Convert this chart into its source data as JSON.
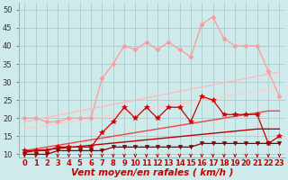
{
  "x": [
    0,
    1,
    2,
    3,
    4,
    5,
    6,
    7,
    8,
    9,
    10,
    11,
    12,
    13,
    14,
    15,
    16,
    17,
    18,
    19,
    20,
    21,
    22,
    23
  ],
  "series": [
    {
      "name": "rafales_jagged",
      "color": "#ff9999",
      "linewidth": 0.9,
      "marker": "D",
      "markersize": 2.5,
      "zorder": 4,
      "y": [
        20,
        20,
        19,
        19,
        20,
        20,
        20,
        31,
        35,
        40,
        39,
        41,
        39,
        41,
        39,
        37,
        46,
        48,
        42,
        40,
        40,
        40,
        33,
        26
      ]
    },
    {
      "name": "rafales_trend_upper",
      "color": "#ffbbbb",
      "linewidth": 1.0,
      "marker": null,
      "markersize": 0,
      "zorder": 3,
      "y": [
        19.0,
        19.6,
        20.2,
        20.8,
        21.4,
        22.0,
        22.6,
        23.2,
        23.8,
        24.4,
        25.0,
        25.6,
        26.2,
        26.8,
        27.4,
        28.0,
        28.6,
        29.2,
        29.8,
        30.4,
        31.0,
        31.6,
        32.2,
        32.8
      ]
    },
    {
      "name": "rafales_trend_lower",
      "color": "#ffcccc",
      "linewidth": 1.0,
      "marker": null,
      "markersize": 0,
      "zorder": 3,
      "y": [
        17.0,
        17.5,
        18.0,
        18.5,
        19.0,
        19.5,
        20.0,
        20.5,
        21.0,
        21.5,
        22.0,
        22.5,
        23.0,
        23.5,
        24.0,
        24.5,
        25.0,
        25.5,
        26.0,
        26.5,
        27.0,
        27.5,
        28.0,
        28.5
      ]
    },
    {
      "name": "vent_jagged",
      "color": "#cc0000",
      "linewidth": 0.9,
      "marker": "*",
      "markersize": 4,
      "zorder": 5,
      "y": [
        11,
        11,
        11,
        12,
        12,
        12,
        12,
        16,
        19,
        23,
        20,
        23,
        20,
        23,
        23,
        19,
        26,
        25,
        21,
        21,
        21,
        21,
        13,
        15
      ]
    },
    {
      "name": "vent_trend_upper",
      "color": "#ee4444",
      "linewidth": 1.0,
      "marker": null,
      "markersize": 0,
      "zorder": 3,
      "y": [
        11.0,
        11.5,
        12.0,
        12.5,
        13.0,
        13.5,
        14.0,
        14.5,
        15.0,
        15.5,
        16.0,
        16.5,
        17.0,
        17.5,
        18.0,
        18.5,
        19.0,
        19.5,
        20.0,
        20.5,
        21.0,
        21.5,
        22.0,
        22.0
      ]
    },
    {
      "name": "vent_trend_lower",
      "color": "#bb0000",
      "linewidth": 1.0,
      "marker": null,
      "markersize": 0,
      "zorder": 3,
      "y": [
        10.5,
        11.0,
        11.3,
        11.6,
        11.9,
        12.2,
        12.5,
        12.8,
        13.1,
        13.4,
        13.7,
        14.0,
        14.3,
        14.6,
        14.9,
        15.2,
        15.5,
        15.8,
        16.1,
        16.4,
        16.7,
        17.0,
        17.0,
        17.0
      ]
    },
    {
      "name": "vent_min",
      "color": "#880000",
      "linewidth": 0.9,
      "marker": "v",
      "markersize": 3,
      "zorder": 5,
      "y": [
        10,
        10,
        10,
        11,
        11,
        11,
        11,
        11,
        12,
        12,
        12,
        12,
        12,
        12,
        12,
        12,
        13,
        13,
        13,
        13,
        13,
        13,
        13,
        13
      ]
    }
  ],
  "xlabel": "Vent moyen/en rafales ( km/h )",
  "xlim": [
    -0.5,
    23.5
  ],
  "ylim": [
    9,
    52
  ],
  "yticks": [
    10,
    15,
    20,
    25,
    30,
    35,
    40,
    45,
    50
  ],
  "xticks": [
    0,
    1,
    2,
    3,
    4,
    5,
    6,
    7,
    8,
    9,
    10,
    11,
    12,
    13,
    14,
    15,
    16,
    17,
    18,
    19,
    20,
    21,
    22,
    23
  ],
  "background_color": "#ceeaea",
  "grid_color": "#aacccc",
  "xlabel_color": "#cc0000",
  "xlabel_fontsize": 7.5,
  "tick_fontsize": 6,
  "arrow_color": "#cc0000",
  "figsize": [
    3.2,
    2.0
  ],
  "dpi": 100
}
